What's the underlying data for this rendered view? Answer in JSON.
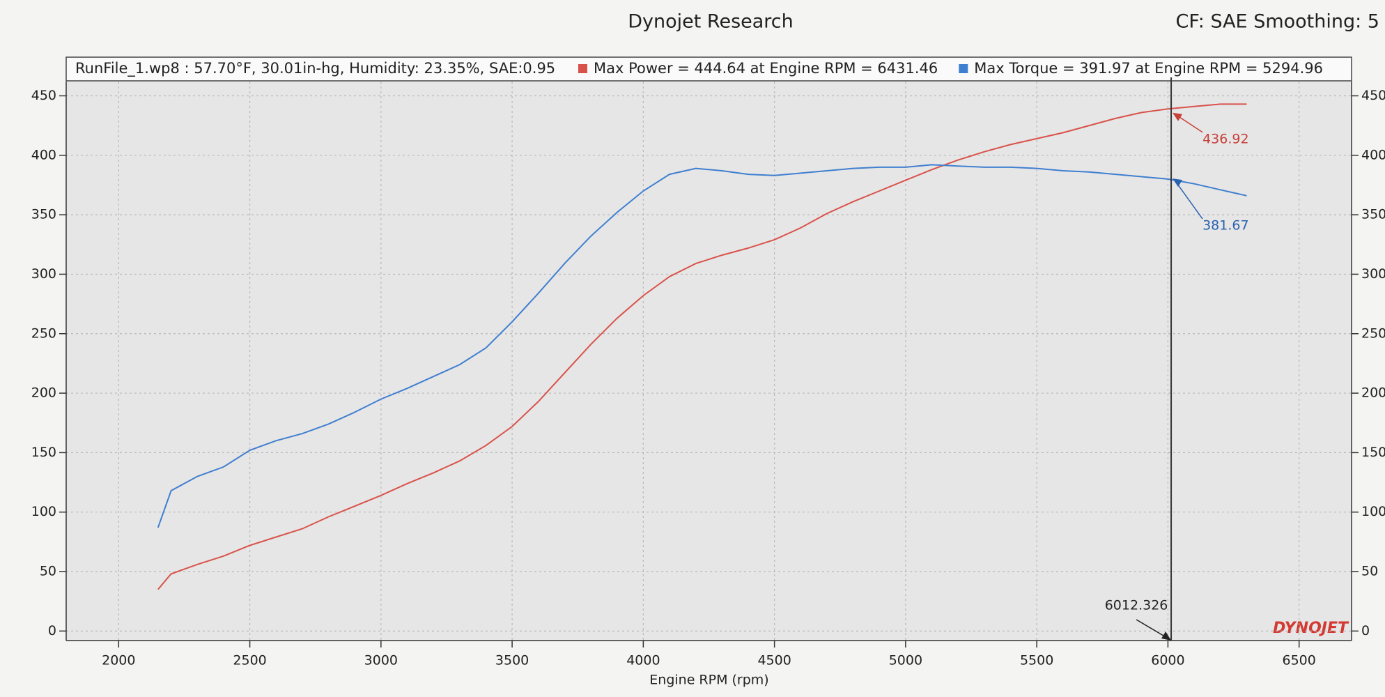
{
  "chart_data": {
    "type": "line",
    "title": "Dynojet Research",
    "subtitle": "CF: SAE Smoothing: 5",
    "run_info": "RunFile_1.wp8  : 57.70°F, 30.01in-hg, Humidity: 23.35%, SAE:0.95",
    "x_label": "Engine RPM (rpm)",
    "logo": "DYNOJET",
    "x": [
      2150,
      2200,
      2300,
      2400,
      2500,
      2600,
      2700,
      2800,
      2900,
      3000,
      3100,
      3200,
      3300,
      3400,
      3500,
      3600,
      3700,
      3800,
      3900,
      4000,
      4100,
      4200,
      4300,
      4400,
      4500,
      4600,
      4700,
      4800,
      4900,
      5000,
      5100,
      5200,
      5300,
      5400,
      5500,
      5600,
      5700,
      5800,
      5900,
      6000,
      6100,
      6200,
      6300
    ],
    "series": [
      {
        "name": "Max Power = 444.64 at Engine RPM = 6431.46",
        "color": "#d9524a",
        "values": [
          35,
          48,
          56,
          63,
          72,
          79,
          86,
          96,
          105,
          114,
          124,
          133,
          143,
          156,
          172,
          193,
          217,
          241,
          263,
          282,
          298,
          309,
          316,
          322,
          329,
          339,
          351,
          361,
          370,
          379,
          388,
          396,
          403,
          409,
          414,
          419,
          425,
          431,
          436,
          439,
          441,
          443,
          443
        ]
      },
      {
        "name": "Max Torque = 391.97 at Engine RPM = 5294.96",
        "color": "#3f7fd0",
        "values": [
          87,
          118,
          130,
          138,
          152,
          160,
          166,
          174,
          184,
          195,
          204,
          214,
          224,
          238,
          260,
          284,
          309,
          332,
          352,
          370,
          384,
          389,
          387,
          384,
          383,
          385,
          387,
          389,
          390,
          390,
          392,
          391,
          390,
          390,
          389,
          387,
          386,
          384,
          382,
          380,
          376,
          371,
          366
        ]
      }
    ],
    "cursor": {
      "x": 6012.326,
      "readouts": [
        {
          "value": 436.92,
          "color": "#c8403a"
        },
        {
          "value": 381.67,
          "color": "#2a62b0"
        }
      ]
    },
    "xlim": [
      1800,
      6700
    ],
    "xticks": [
      2000,
      2500,
      3000,
      3500,
      4000,
      4500,
      5000,
      5500,
      6000,
      6500
    ],
    "ylim": [
      -8,
      462
    ],
    "yticks": [
      0,
      50,
      100,
      150,
      200,
      250,
      300,
      350,
      400,
      450
    ],
    "grid": true
  }
}
